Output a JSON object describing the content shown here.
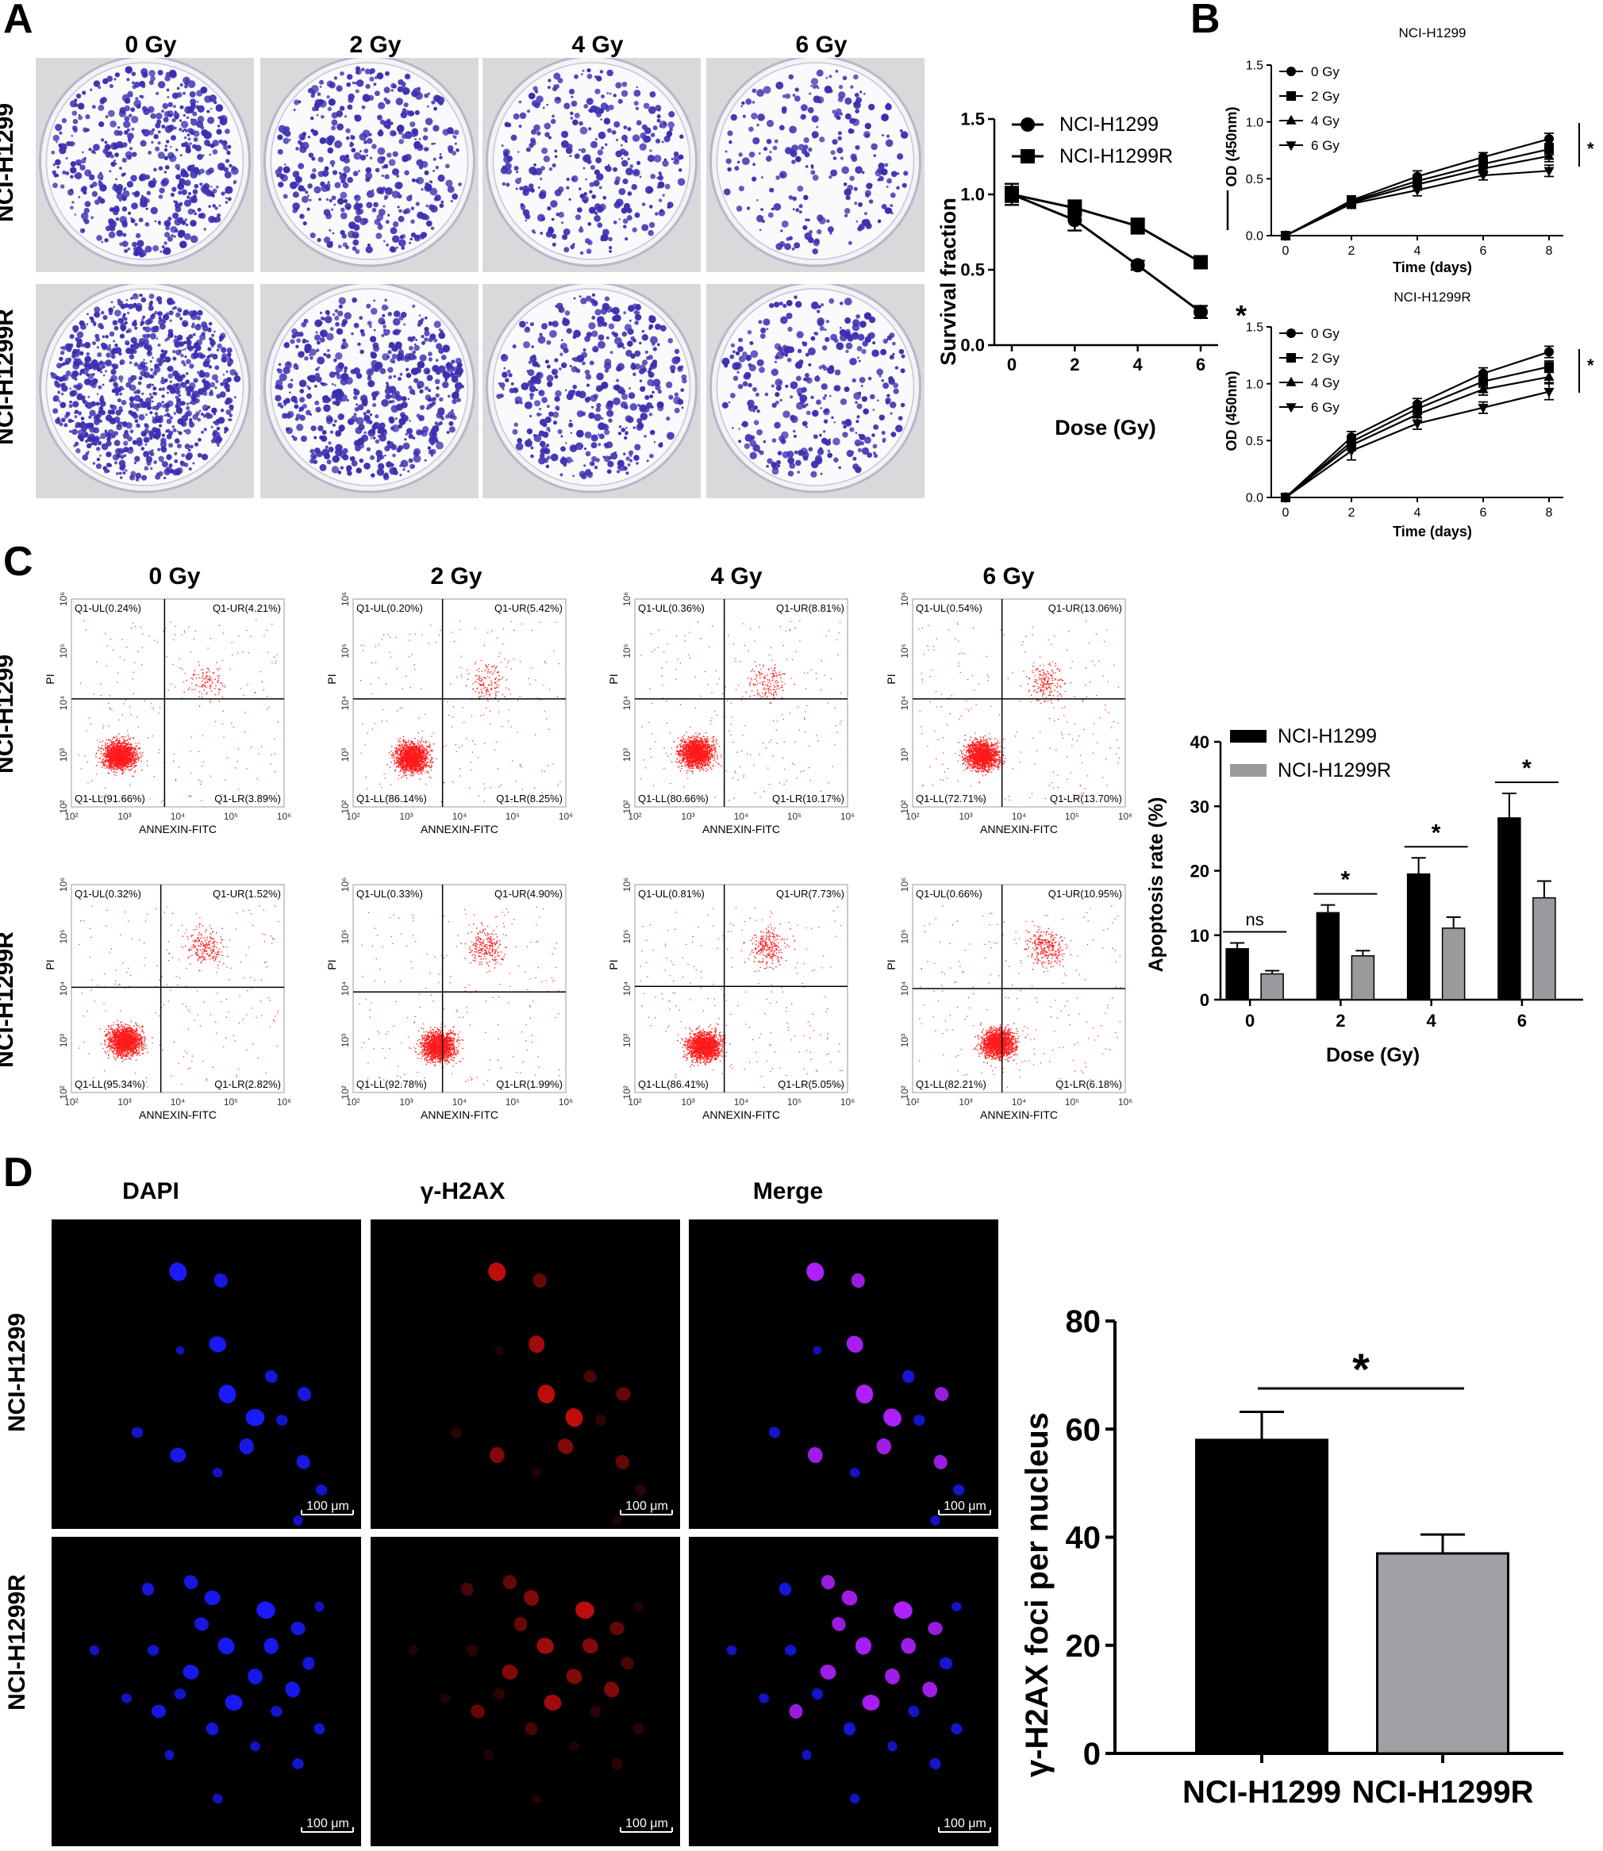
{
  "panel_labels": {
    "a": "A",
    "b": "B",
    "c": "C",
    "d": "D"
  },
  "panel_a": {
    "col_titles": [
      "0 Gy",
      "2 Gy",
      "4 Gy",
      "6 Gy"
    ],
    "row_titles": [
      "NCI-H1299",
      "NCI-H1299R"
    ],
    "colors": {
      "stain": "#3b2fb0",
      "plate_bg": "#d9d9db"
    }
  },
  "panel_b": {
    "colors": {
      "line": "#000000"
    }
  },
  "panel_c": {
    "col_titles": [
      "0 Gy",
      "2 Gy",
      "4 Gy",
      "6 Gy"
    ],
    "row_titles": [
      "NCI-H1299",
      "NCI-H1299R"
    ],
    "x_axis_label": "ANNEXIN-FITC",
    "y_axis_label": "PI",
    "tick_labels": [
      "10²",
      "10³",
      "10⁴",
      "10⁵",
      "10⁶"
    ],
    "colors": {
      "dots": "#ff1a1a"
    },
    "plots": [
      {
        "UL": "Q1-UL(0.24%)",
        "UR": "Q1-UR(4.21%)",
        "LL": "Q1-LL(91.66%)",
        "LR": "Q1-LR(3.89%)"
      },
      {
        "UL": "Q1-UL(0.20%)",
        "UR": "Q1-UR(5.42%)",
        "LL": "Q1-LL(86.14%)",
        "LR": "Q1-LR(8.25%)"
      },
      {
        "UL": "Q1-UL(0.36%)",
        "UR": "Q1-UR(8.81%)",
        "LL": "Q1-LL(80.66%)",
        "LR": "Q1-LR(10.17%)"
      },
      {
        "UL": "Q1-UL(0.54%)",
        "UR": "Q1-UR(13.06%)",
        "LL": "Q1-LL(72.71%)",
        "LR": "Q1-LR(13.70%)"
      },
      {
        "UL": "Q1-UL(0.32%)",
        "UR": "Q1-UR(1.52%)",
        "LL": "Q1-LL(95.34%)",
        "LR": "Q1-LR(2.82%)"
      },
      {
        "UL": "Q1-UL(0.33%)",
        "UR": "Q1-UR(4.90%)",
        "LL": "Q1-LL(92.78%)",
        "LR": "Q1-LR(1.99%)"
      },
      {
        "UL": "Q1-UL(0.81%)",
        "UR": "Q1-UR(7.73%)",
        "LL": "Q1-LL(86.41%)",
        "LR": "Q1-LR(5.05%)"
      },
      {
        "UL": "Q1-UL(0.66%)",
        "UR": "Q1-UR(10.95%)",
        "LL": "Q1-LL(82.21%)",
        "LR": "Q1-LR(6.18%)"
      }
    ]
  },
  "panel_d": {
    "col_titles": [
      "DAPI",
      "γ-H2AX",
      "Merge"
    ],
    "row_titles": [
      "NCI-H1299",
      "NCI-H1299R"
    ],
    "scale_bar": "100 μm",
    "colors": {
      "dapi": "#1a1aff",
      "h2ax": "#e01010",
      "merge": "#b020ff"
    }
  },
  "chart_data": [
    {
      "id": "survival",
      "type": "line",
      "xlabel": "Dose (Gy)",
      "ylabel": "Survival fraction",
      "x": [
        0,
        2,
        4,
        6
      ],
      "xlim": [
        0,
        6
      ],
      "ylim": [
        0,
        1.5
      ],
      "xticks": [
        "0",
        "2",
        "4",
        "6"
      ],
      "yticks": [
        "0.0",
        "0.5",
        "1.0",
        "1.5"
      ],
      "series": [
        {
          "name": "NCI-H1299",
          "marker": "circle",
          "values": [
            1.0,
            0.83,
            0.53,
            0.22
          ],
          "err": [
            0.07,
            0.07,
            0.03,
            0.04
          ]
        },
        {
          "name": "NCI-H1299R",
          "marker": "square",
          "values": [
            1.0,
            0.91,
            0.79,
            0.55
          ],
          "err": [
            0.05,
            0.05,
            0.05,
            0.03
          ]
        }
      ],
      "annotation": "*",
      "legend": "top-right"
    },
    {
      "id": "cck8_h1299",
      "type": "line",
      "title": "NCI-H1299",
      "xlabel": "Time (days)",
      "ylabel": "OD (450nm)",
      "x": [
        0,
        2,
        4,
        6,
        8
      ],
      "ylim": [
        0,
        1.5
      ],
      "xticks": [
        "0",
        "2",
        "4",
        "6",
        "8"
      ],
      "yticks": [
        "0.0",
        "0.5",
        "1.0",
        "1.5"
      ],
      "series": [
        {
          "name": "0 Gy",
          "marker": "circle",
          "values": [
            0,
            0.31,
            0.52,
            0.69,
            0.85
          ],
          "err": [
            0,
            0.04,
            0.05,
            0.04,
            0.05
          ]
        },
        {
          "name": "2 Gy",
          "marker": "square",
          "values": [
            0,
            0.3,
            0.48,
            0.63,
            0.76
          ],
          "err": [
            0,
            0.04,
            0.05,
            0.04,
            0.05
          ]
        },
        {
          "name": "4 Gy",
          "marker": "triangle-up",
          "values": [
            0,
            0.29,
            0.45,
            0.59,
            0.7
          ],
          "err": [
            0,
            0.04,
            0.05,
            0.04,
            0.05
          ]
        },
        {
          "name": "6 Gy",
          "marker": "triangle-down",
          "values": [
            0,
            0.28,
            0.4,
            0.53,
            0.57
          ],
          "err": [
            0,
            0.04,
            0.05,
            0.04,
            0.05
          ]
        }
      ],
      "annotation": "*",
      "legend": "top-left"
    },
    {
      "id": "cck8_h1299r",
      "type": "line",
      "title": "NCI-H1299R",
      "xlabel": "Time (days)",
      "ylabel": "OD (450nm)",
      "x": [
        0,
        2,
        4,
        6,
        8
      ],
      "ylim": [
        0,
        1.5
      ],
      "xticks": [
        "0",
        "2",
        "4",
        "6",
        "8"
      ],
      "yticks": [
        "0.0",
        "0.5",
        "1.0",
        "1.5"
      ],
      "series": [
        {
          "name": "0 Gy",
          "marker": "circle",
          "values": [
            0,
            0.53,
            0.82,
            1.09,
            1.28
          ],
          "err": [
            0,
            0.05,
            0.05,
            0.05,
            0.05
          ]
        },
        {
          "name": "2 Gy",
          "marker": "square",
          "values": [
            0,
            0.49,
            0.78,
            1.02,
            1.15
          ],
          "err": [
            0,
            0.05,
            0.05,
            0.05,
            0.05
          ]
        },
        {
          "name": "4 Gy",
          "marker": "triangle-up",
          "values": [
            0,
            0.46,
            0.73,
            0.95,
            1.06
          ],
          "err": [
            0,
            0.05,
            0.05,
            0.05,
            0.05
          ]
        },
        {
          "name": "6 Gy",
          "marker": "triangle-down",
          "values": [
            0,
            0.41,
            0.65,
            0.79,
            0.93
          ],
          "err": [
            0,
            0.08,
            0.05,
            0.05,
            0.07
          ]
        }
      ],
      "annotation": "*",
      "legend": "top-left"
    },
    {
      "id": "apoptosis",
      "type": "bar",
      "xlabel": "Dose (Gy)",
      "ylabel": "Apoptosis rate (%)",
      "categories": [
        "0",
        "2",
        "4",
        "6"
      ],
      "ylim": [
        0,
        40
      ],
      "yticks": [
        "0",
        "10",
        "20",
        "30",
        "40"
      ],
      "series": [
        {
          "name": "NCI-H1299",
          "color": "#000000",
          "values": [
            7.9,
            13.5,
            19.5,
            28.2
          ],
          "err": [
            0.9,
            1.2,
            2.5,
            3.8
          ]
        },
        {
          "name": "NCI-H1299R",
          "color": "#9a9a9e",
          "values": [
            4.0,
            6.8,
            11.1,
            15.8
          ],
          "err": [
            0.5,
            0.8,
            1.7,
            2.6
          ]
        }
      ],
      "annotations": [
        "ns",
        "*",
        "*",
        "*"
      ],
      "legend": "top-right"
    },
    {
      "id": "foci",
      "type": "bar",
      "ylabel": "γ-H2AX foci per nucleus",
      "categories": [
        "NCI-H1299",
        "NCI-H1299R"
      ],
      "values": [
        58,
        37
      ],
      "err": [
        5.2,
        3.5
      ],
      "colors": [
        "#000000",
        "#a0a0a4"
      ],
      "ylim": [
        0,
        80
      ],
      "yticks": [
        "0",
        "20",
        "40",
        "60",
        "80"
      ],
      "annotation": "*"
    }
  ]
}
